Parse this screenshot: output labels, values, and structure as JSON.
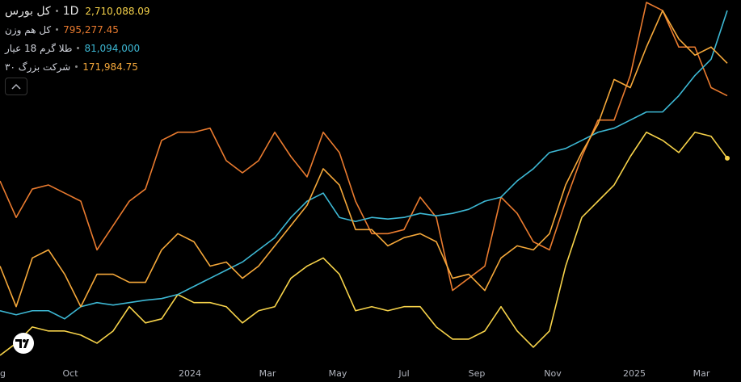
{
  "chart_data": {
    "type": "line",
    "interval": "1D",
    "xticks": [
      {
        "value": 0,
        "label": "ug"
      },
      {
        "value": 4.35,
        "label": "Oct"
      },
      {
        "value": 11.75,
        "label": "2024"
      },
      {
        "value": 16.55,
        "label": "Mar"
      },
      {
        "value": 20.9,
        "label": "May"
      },
      {
        "value": 25,
        "label": "Jul"
      },
      {
        "value": 29.5,
        "label": "Sep"
      },
      {
        "value": 34.2,
        "label": "Nov"
      },
      {
        "value": 39.25,
        "label": "2025"
      },
      {
        "value": 43.4,
        "label": "Mar"
      }
    ],
    "series": [
      {
        "name": "کل بورس",
        "color": "#f7d34a",
        "value_label": "2,710,088.09",
        "values": [
          15,
          30,
          50,
          45,
          45,
          40,
          30,
          45,
          75,
          55,
          60,
          90,
          80,
          80,
          75,
          55,
          70,
          75,
          110,
          125,
          135,
          115,
          70,
          75,
          70,
          75,
          75,
          50,
          35,
          35,
          45,
          75,
          45,
          25,
          45,
          125,
          185,
          205,
          225,
          260,
          290,
          280,
          265,
          290,
          285,
          258
        ]
      },
      {
        "name": "کل هم وزن",
        "color": "#ea7b2f",
        "value_label": "795,277.45",
        "values": [
          230,
          185,
          220,
          225,
          215,
          205,
          145,
          175,
          205,
          220,
          280,
          290,
          290,
          295,
          255,
          240,
          255,
          290,
          260,
          235,
          290,
          265,
          205,
          165,
          165,
          170,
          210,
          185,
          95,
          110,
          125,
          210,
          190,
          155,
          145,
          205,
          260,
          305,
          305,
          360,
          450,
          440,
          395,
          395,
          345,
          335
        ]
      },
      {
        "name": "طلا گرم 18 عیار",
        "color": "#3db8d4",
        "value_label": "81,094,000",
        "values": [
          70,
          65,
          70,
          70,
          60,
          75,
          80,
          77,
          80,
          83,
          85,
          90,
          100,
          110,
          120,
          130,
          145,
          160,
          185,
          205,
          215,
          185,
          180,
          185,
          183,
          185,
          190,
          187,
          190,
          195,
          205,
          210,
          230,
          245,
          265,
          270,
          280,
          290,
          295,
          305,
          315,
          315,
          335,
          360,
          380,
          440
        ]
      },
      {
        "name": "شرکت بزرگ ۳۰",
        "color": "#f5a83a",
        "value_label": "171,984.75",
        "values": [
          125,
          75,
          135,
          145,
          115,
          75,
          115,
          115,
          105,
          105,
          145,
          165,
          155,
          125,
          130,
          110,
          125,
          150,
          175,
          200,
          245,
          225,
          170,
          170,
          150,
          160,
          165,
          155,
          110,
          115,
          95,
          135,
          150,
          145,
          165,
          225,
          265,
          300,
          355,
          345,
          395,
          440,
          405,
          385,
          395,
          375
        ]
      }
    ]
  }
}
